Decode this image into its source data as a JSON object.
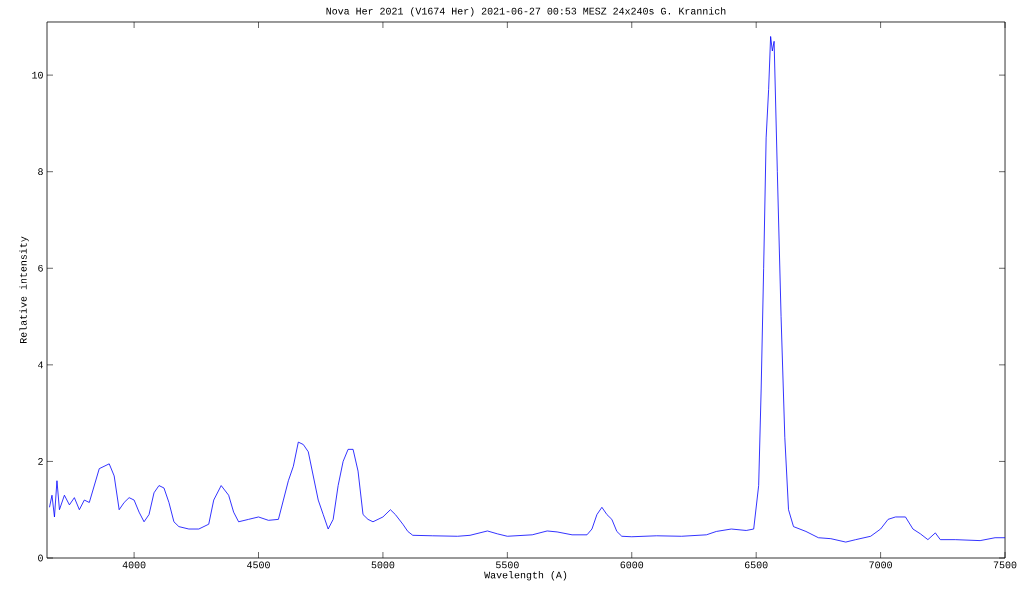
{
  "chart_data": {
    "type": "line",
    "title": "Nova Her 2021  (V1674 Her)   2021-06-27 00:53 MESZ   24x240s   G. Krannich",
    "xlabel": "Wavelength (A)",
    "ylabel": "Relative intensity",
    "xlim": [
      3650,
      7500
    ],
    "ylim": [
      0,
      11.1
    ],
    "xticks": [
      4000,
      4500,
      5000,
      5500,
      6000,
      6500,
      7000,
      7500
    ],
    "yticks": [
      0,
      2,
      4,
      6,
      8,
      10
    ],
    "marker": "none",
    "line_style": "solid",
    "series": [
      {
        "color": "#0000ff",
        "x": [
          3660,
          3670,
          3680,
          3690,
          3700,
          3720,
          3740,
          3760,
          3780,
          3800,
          3820,
          3840,
          3860,
          3880,
          3900,
          3920,
          3940,
          3960,
          3980,
          4000,
          4020,
          4040,
          4060,
          4080,
          4100,
          4120,
          4140,
          4160,
          4180,
          4220,
          4260,
          4300,
          4320,
          4350,
          4380,
          4400,
          4420,
          4460,
          4500,
          4540,
          4580,
          4600,
          4620,
          4640,
          4660,
          4680,
          4700,
          4720,
          4740,
          4760,
          4780,
          4800,
          4820,
          4840,
          4860,
          4880,
          4900,
          4920,
          4940,
          4960,
          5000,
          5030,
          5050,
          5080,
          5100,
          5120,
          5200,
          5300,
          5350,
          5420,
          5460,
          5500,
          5600,
          5660,
          5700,
          5760,
          5820,
          5840,
          5860,
          5880,
          5900,
          5920,
          5940,
          5960,
          6000,
          6100,
          6200,
          6300,
          6340,
          6400,
          6460,
          6490,
          6510,
          6520,
          6530,
          6540,
          6550,
          6558,
          6565,
          6572,
          6585,
          6600,
          6615,
          6630,
          6650,
          6700,
          6750,
          6800,
          6860,
          6900,
          6960,
          7000,
          7030,
          7060,
          7100,
          7130,
          7160,
          7190,
          7220,
          7240,
          7300,
          7400,
          7460,
          7500
        ],
        "values": [
          1.05,
          1.3,
          0.85,
          1.6,
          1.0,
          1.3,
          1.1,
          1.25,
          1.0,
          1.2,
          1.15,
          1.5,
          1.85,
          1.9,
          1.95,
          1.7,
          1.0,
          1.15,
          1.25,
          1.2,
          0.95,
          0.75,
          0.9,
          1.35,
          1.5,
          1.45,
          1.15,
          0.75,
          0.65,
          0.6,
          0.6,
          0.7,
          1.2,
          1.5,
          1.3,
          0.95,
          0.75,
          0.8,
          0.85,
          0.78,
          0.8,
          1.2,
          1.6,
          1.9,
          2.4,
          2.35,
          2.2,
          1.7,
          1.2,
          0.9,
          0.6,
          0.8,
          1.5,
          2.0,
          2.25,
          2.25,
          1.8,
          0.9,
          0.8,
          0.75,
          0.85,
          1.0,
          0.9,
          0.7,
          0.55,
          0.47,
          0.46,
          0.45,
          0.47,
          0.56,
          0.5,
          0.45,
          0.48,
          0.56,
          0.54,
          0.48,
          0.48,
          0.6,
          0.9,
          1.05,
          0.9,
          0.8,
          0.55,
          0.45,
          0.44,
          0.46,
          0.45,
          0.48,
          0.55,
          0.6,
          0.57,
          0.6,
          1.5,
          3.5,
          6.0,
          8.7,
          9.7,
          10.8,
          10.5,
          10.7,
          8.0,
          5.0,
          2.5,
          1.0,
          0.65,
          0.55,
          0.42,
          0.4,
          0.33,
          0.38,
          0.45,
          0.6,
          0.8,
          0.85,
          0.85,
          0.6,
          0.5,
          0.38,
          0.52,
          0.38,
          0.38,
          0.36,
          0.42,
          0.42
        ]
      }
    ]
  }
}
